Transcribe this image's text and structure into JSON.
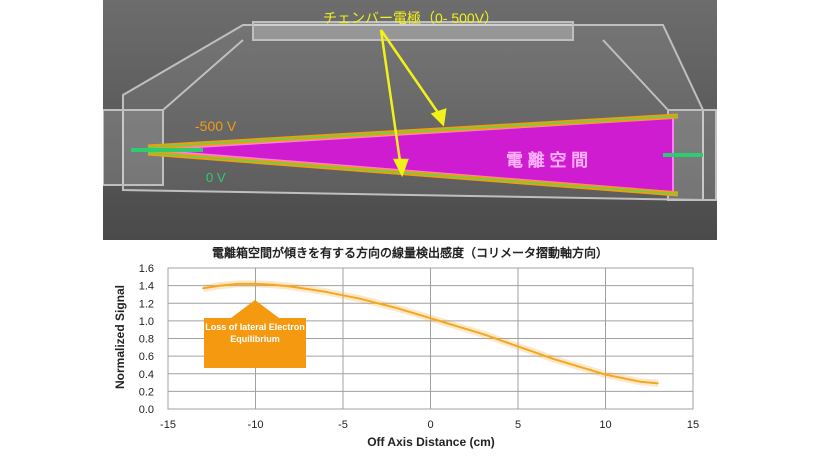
{
  "illustration": {
    "label_electrodes": "チェンバー電極（0- 500V）",
    "label_minus500": "-500 V",
    "label_zero": "0 V",
    "label_space": "電 離 空 間"
  },
  "chart_data": {
    "type": "line",
    "title": "電離箱空間が傾きを有する方向の線量検出感度（コリメータ摺動軸方向）",
    "xlabel": "Off Axis Distance (cm)",
    "ylabel": "Normalized Signal",
    "xlim": [
      -15,
      15
    ],
    "ylim": [
      0,
      1.6
    ],
    "xticks": [
      "-15",
      "-10",
      "-5",
      "0",
      "5",
      "10",
      "15"
    ],
    "yticks": [
      "0.0",
      "0.2",
      "0.4",
      "0.6",
      "0.8",
      "1.0",
      "1.2",
      "1.4",
      "1.6"
    ],
    "grid": true,
    "series": [
      {
        "color": "#f5a623",
        "x": [
          -13,
          -12,
          -11,
          -10,
          -9,
          -8,
          -7,
          -6,
          -5,
          -4,
          -3,
          -2,
          -1,
          0,
          1,
          2,
          3,
          4,
          5,
          6,
          7,
          8,
          9,
          10,
          11,
          12,
          13
        ],
        "y": [
          1.37,
          1.4,
          1.42,
          1.42,
          1.41,
          1.39,
          1.36,
          1.33,
          1.29,
          1.25,
          1.2,
          1.15,
          1.09,
          1.03,
          0.97,
          0.91,
          0.85,
          0.78,
          0.71,
          0.64,
          0.57,
          0.51,
          0.45,
          0.39,
          0.35,
          0.31,
          0.29
        ]
      }
    ],
    "annotation": "Loss of lateral Electron Equilibrium"
  }
}
